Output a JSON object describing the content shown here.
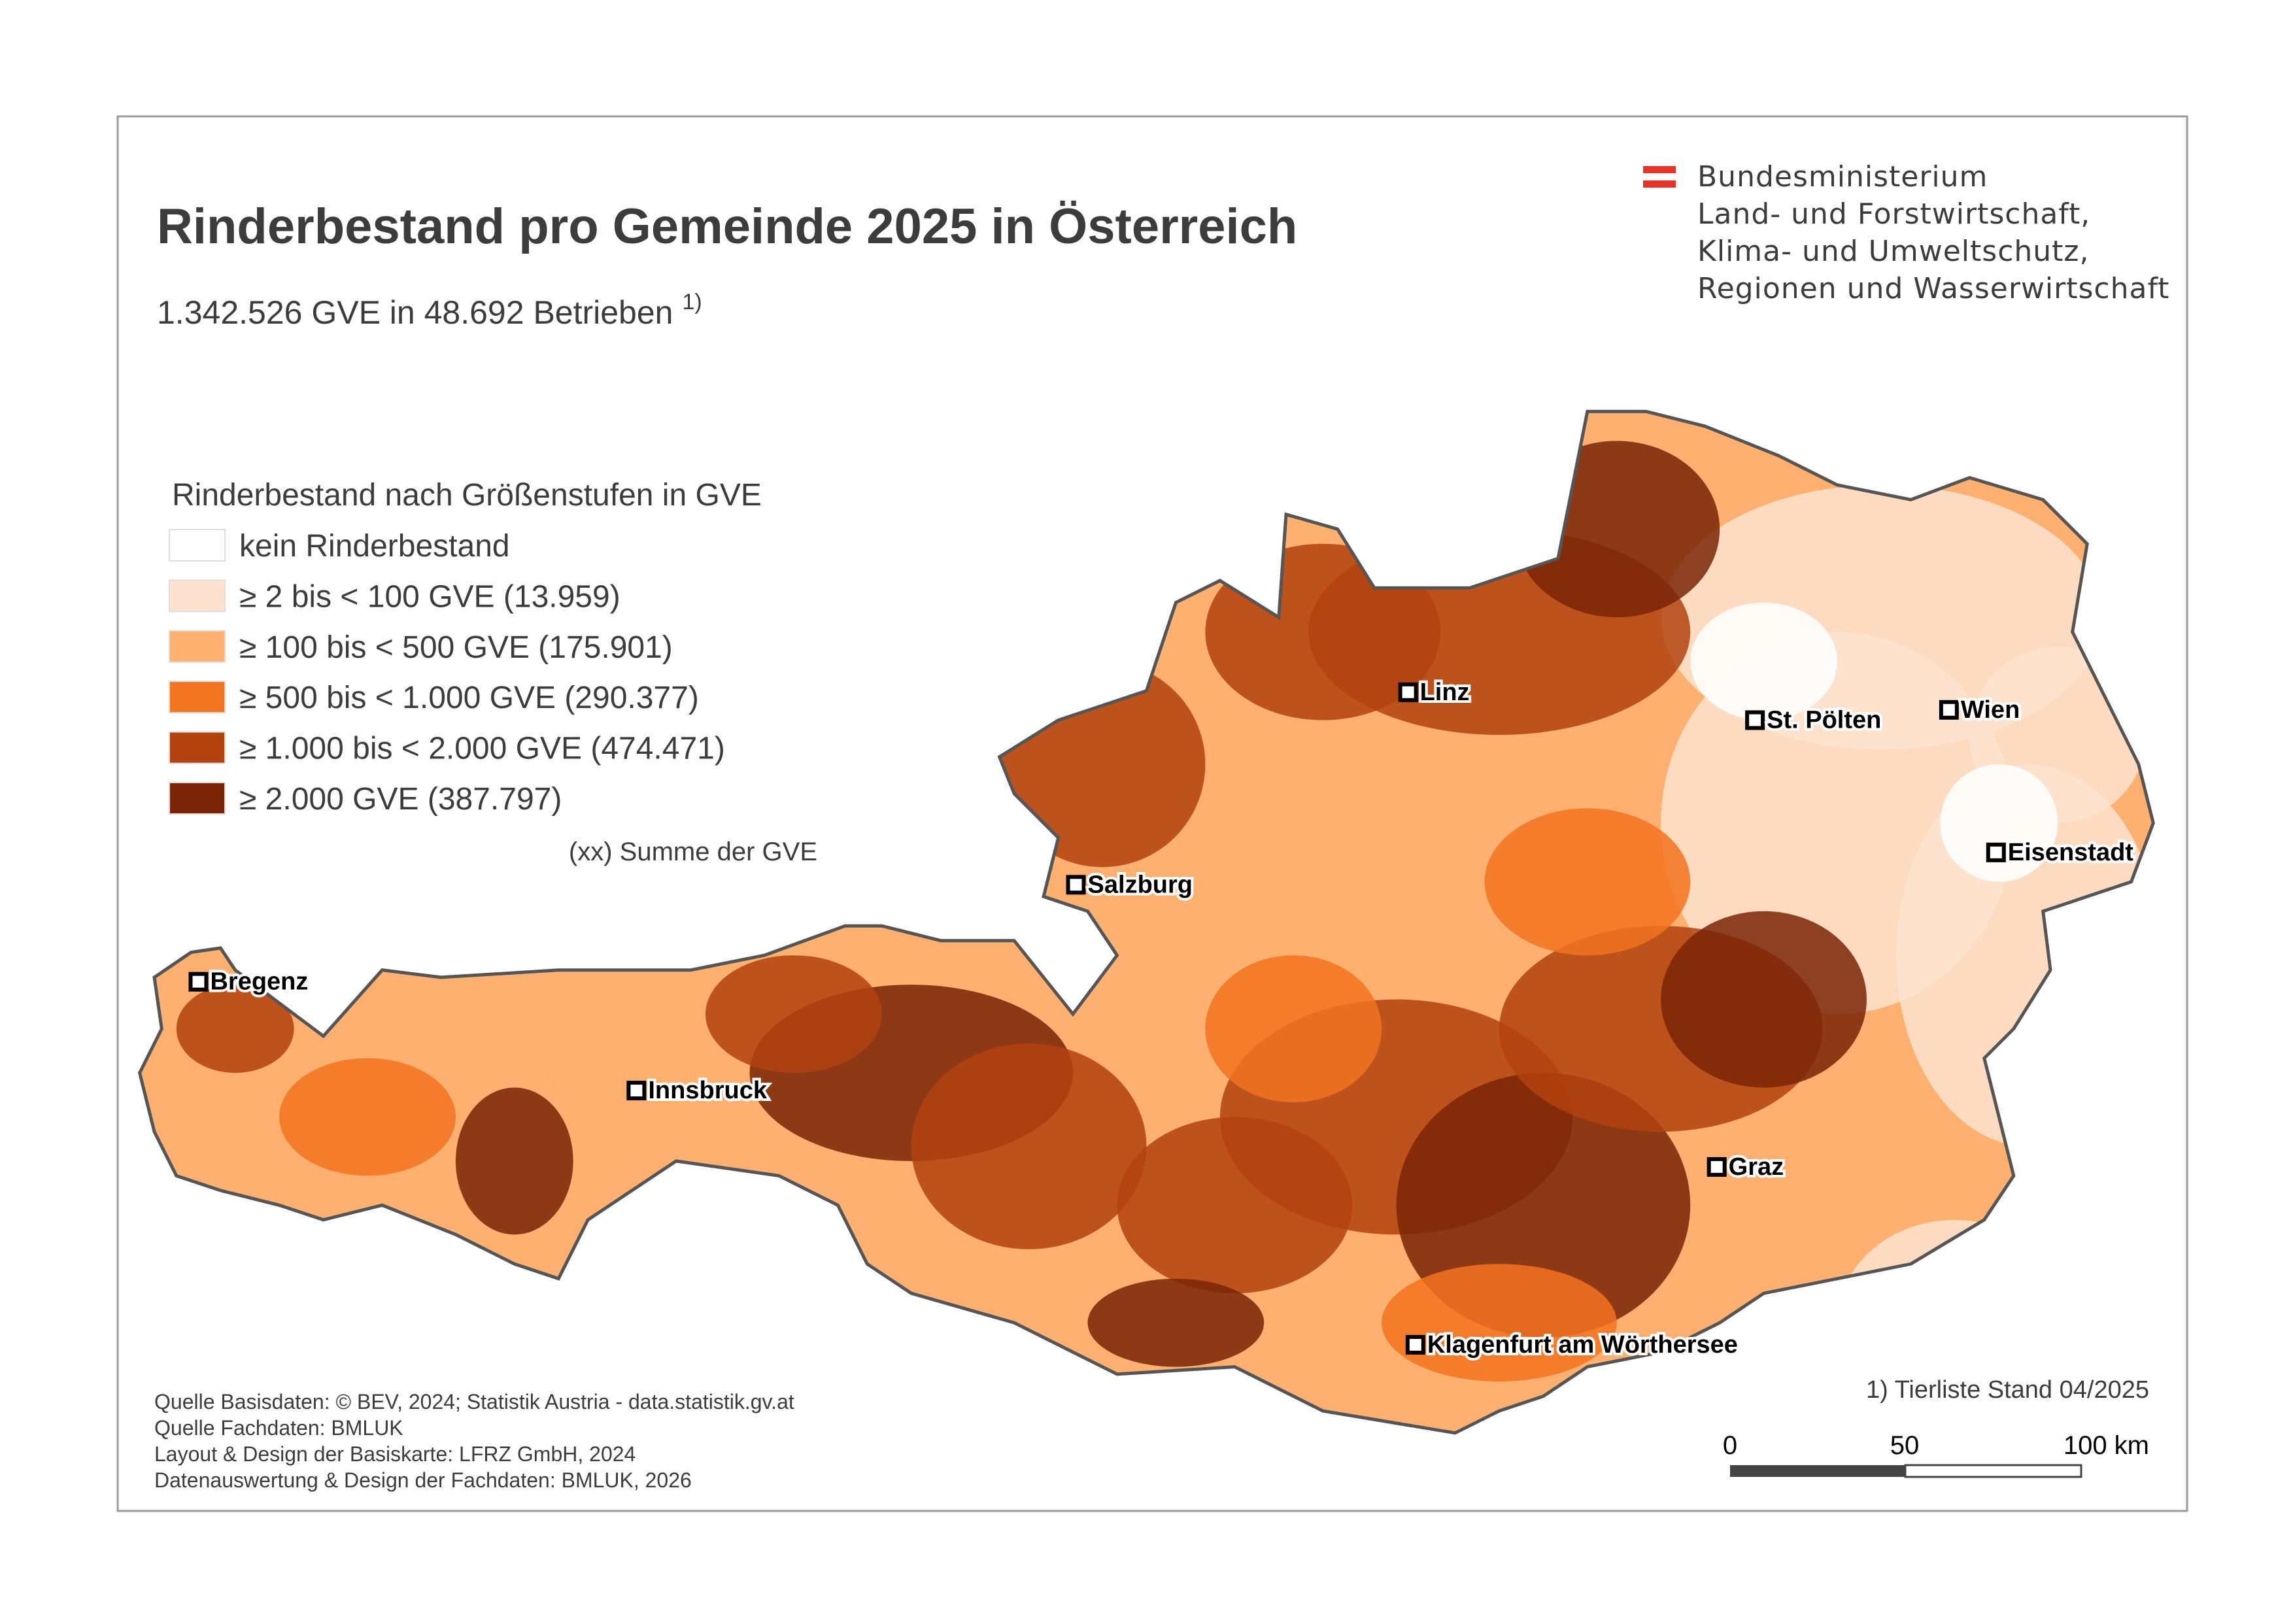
{
  "header": {
    "title": "Rinderbestand pro Gemeinde 2025 in Österreich",
    "subtitle": "1.342.526 GVE in 48.692 Betrieben",
    "subtitle_note": "1)"
  },
  "ministry": {
    "lines": [
      "Bundesministerium",
      "Land- und Forstwirtschaft,",
      "Klima- und Umweltschutz,",
      "Regionen und Wasserwirtschaft"
    ]
  },
  "legend": {
    "title": "Rinderbestand nach Größenstufen in GVE",
    "items": [
      {
        "label": "kein Rinderbestand",
        "color": "#ffffff"
      },
      {
        "label": "≥ 2 bis < 100 GVE (13.959)",
        "color": "#fde3cf"
      },
      {
        "label": "≥ 100 bis < 500 GVE (175.901)",
        "color": "#fdb06f"
      },
      {
        "label": "≥ 500 bis < 1.000 GVE (290.377)",
        "color": "#f27320"
      },
      {
        "label": "≥ 1.000 bis < 2.000 GVE (474.471)",
        "color": "#b3420f"
      },
      {
        "label": "≥ 2.000 GVE (387.797)",
        "color": "#7a2507"
      }
    ],
    "note": "(xx) Summe der GVE"
  },
  "cities": [
    "Bregenz",
    "Innsbruck",
    "Salzburg",
    "Linz",
    "St. Pölten",
    "Wien",
    "Eisenstadt",
    "Graz",
    "Klagenfurt am Wörthersee"
  ],
  "footer": {
    "sources": [
      "Quelle Basisdaten: © BEV, 2024; Statistik Austria - data.statistik.gv.at",
      "Quelle Fachdaten: BMLUK",
      "Layout & Design der Basiskarte: LFRZ GmbH, 2024",
      "Datenauswertung & Design der Fachdaten: BMLUK, 2026"
    ],
    "footnote": "1) Tierliste Stand 04/2025"
  },
  "scale_bar": {
    "labels": [
      "0",
      "50",
      "100 km"
    ]
  }
}
